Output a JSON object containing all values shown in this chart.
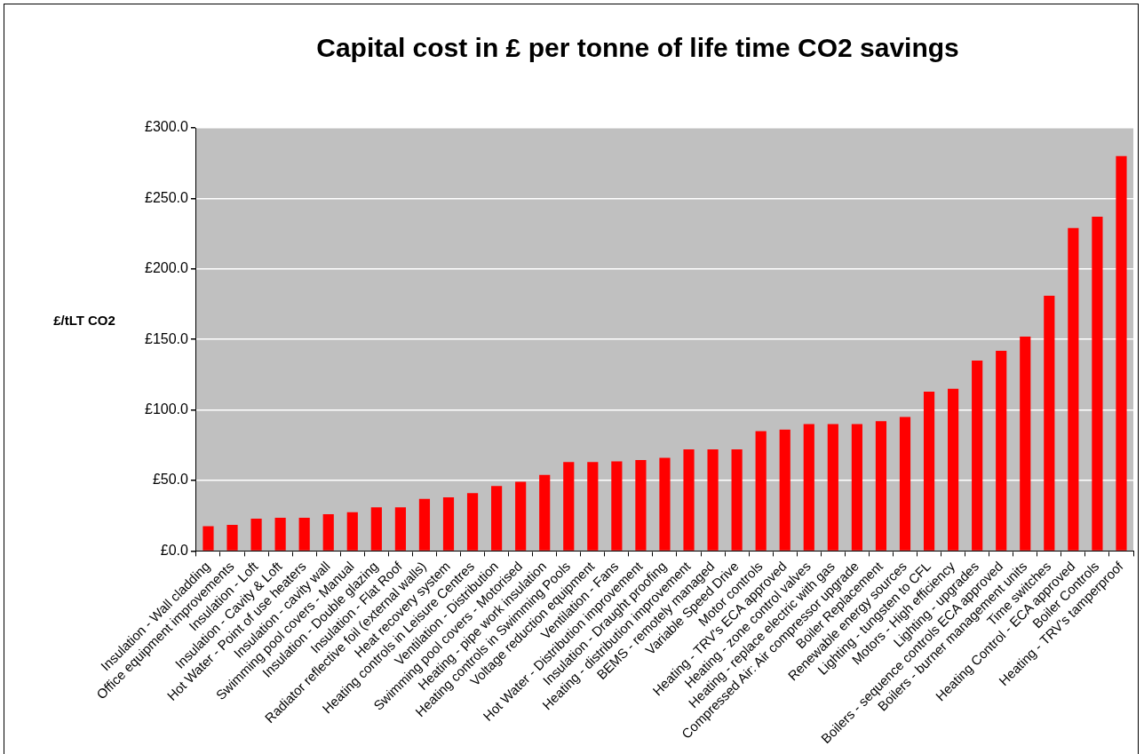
{
  "chart_data": {
    "type": "bar",
    "title": "Capital cost in £ per tonne of life time CO2 savings",
    "ylabel": "£/tLT CO2",
    "categories": [
      "Insulation - Wall cladding",
      "Office equipment improvements",
      "Insulation - Loft",
      "Insulation - Cavity & Loft",
      "Hot Water - Point of use heaters",
      "Insulation - cavity wall",
      "Swimming pool covers - Manual",
      "Insulation - Double glazing",
      "Insulation - Flat Roof",
      "Radiator reflective foil (external walls)",
      "Heat recovery system",
      "Heating controls in Leisure Centres",
      "Ventilation - Distribution",
      "Swimming pool covers - Motorised",
      "Heating - pipe work insulation",
      "Heating controls in Swimming Pools",
      "Voltage reduction equipment",
      "Ventilation - Fans",
      "Hot Water - Distribution improvement",
      "Insulation - Draught proofing",
      "Heating - distribution improvement",
      "BEMS - remotely managed",
      "Variable Speed Drive",
      "Motor controls",
      "Heating - TRV's ECA approved",
      "Heating - zone control valves",
      "Heating - replace electric with gas",
      "Compressed Air: Air compressor upgrade",
      "Boiler Replacement",
      "Renewable energy sources",
      "Lighting - tungsten to CFL",
      "Motors - High efficiency",
      "Lighting - upgrades",
      "Boilers - sequence controls ECA approved",
      "Boilers - burner management units",
      "Time switches",
      "Heating Control - ECA approved",
      "Boiler Controls",
      "Heating - TRV's tamperproof"
    ],
    "values": [
      17.6,
      18.5,
      23,
      23.5,
      23.5,
      26,
      27.5,
      31,
      31,
      37,
      38,
      41,
      46,
      49,
      54,
      63,
      63,
      63.5,
      64.5,
      66,
      72,
      72,
      72,
      85,
      86,
      90,
      90,
      90,
      92,
      95,
      113,
      115,
      135,
      142,
      152,
      181,
      229,
      237,
      280
    ],
    "color": "#ff0000",
    "ylim": [
      0,
      300
    ],
    "yticks": [
      {
        "value": 0,
        "label": "£0.0"
      },
      {
        "value": 50,
        "label": "£50.0"
      },
      {
        "value": 100,
        "label": "£100.0"
      },
      {
        "value": 150,
        "label": "£150.0"
      },
      {
        "value": 200,
        "label": "£200.0"
      },
      {
        "value": 250,
        "label": "£250.0"
      },
      {
        "value": 300,
        "label": "£300.0"
      }
    ],
    "grid": "y",
    "legend": false
  }
}
